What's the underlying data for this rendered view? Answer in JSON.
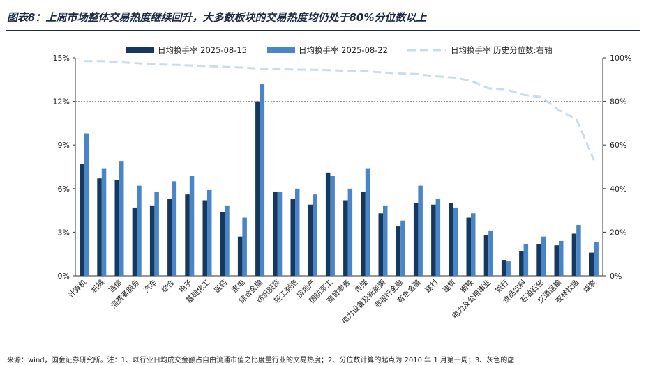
{
  "header": {
    "title": "图表8：上周市场整体交易热度继续回升，大多数板块的交易热度均仍处于80%分位数以上"
  },
  "footer": {
    "source": "来源：wind，国金证券研究所。注：1、以行业日均成交金额占自由流通市值之比度量行业的交易热度；2、分位数计算的起点为 2010 年 1 月第一周；3、灰色的虚"
  },
  "chart_data": {
    "type": "bar",
    "categories": [
      "计算机",
      "机械",
      "通信",
      "消费者服务",
      "汽车",
      "综合",
      "电子",
      "基础化工",
      "医药",
      "家电",
      "综合金融",
      "纺织服装",
      "轻工制造",
      "房地产",
      "国防军工",
      "商贸零售",
      "传媒",
      "电力设备及新能源",
      "非银行金融",
      "有色金属",
      "建材",
      "建筑",
      "钢铁",
      "电力及公用事业",
      "银行",
      "食品饮料",
      "石油石化",
      "交通运输",
      "农林牧渔",
      "煤炭"
    ],
    "series": [
      {
        "name": "日均换手率 2025-08-15",
        "type": "bar",
        "axis": "left",
        "color": "#15385e",
        "values": [
          7.7,
          6.7,
          6.6,
          4.7,
          4.8,
          5.3,
          5.6,
          5.2,
          4.4,
          2.7,
          12.0,
          5.8,
          5.3,
          4.9,
          7.1,
          5.2,
          5.8,
          4.3,
          3.4,
          5.0,
          4.9,
          5.0,
          4.0,
          2.8,
          1.1,
          1.7,
          2.2,
          2.1,
          2.9,
          1.6
        ]
      },
      {
        "name": "日均换手率 2025-08-22",
        "type": "bar",
        "axis": "left",
        "color": "#4a85c8",
        "values": [
          9.8,
          7.4,
          7.9,
          6.2,
          5.8,
          6.5,
          6.9,
          5.9,
          4.8,
          4.0,
          13.2,
          5.8,
          6.0,
          5.6,
          6.9,
          6.0,
          7.4,
          4.8,
          3.8,
          6.2,
          5.3,
          4.7,
          4.3,
          3.1,
          1.0,
          2.2,
          2.7,
          2.4,
          3.5,
          2.3
        ]
      },
      {
        "name": "日均换手率 历史分位数:右轴",
        "type": "line",
        "axis": "right",
        "color": "#c9dcef",
        "values": [
          98.5,
          98.5,
          98.0,
          97.5,
          97.0,
          96.8,
          96.5,
          96.2,
          95.8,
          95.5,
          95.0,
          94.8,
          94.6,
          94.5,
          94.3,
          94.0,
          93.8,
          93.3,
          92.8,
          92.5,
          91.5,
          91.0,
          89.5,
          86.0,
          85.5,
          83.0,
          82.0,
          76.0,
          72.0,
          53.0
        ]
      }
    ],
    "y_left": {
      "ticks": [
        "0%",
        "3%",
        "6%",
        "9%",
        "12%",
        "15%"
      ],
      "range": [
        0,
        15
      ]
    },
    "y_right": {
      "ticks": [
        "0%",
        "20%",
        "40%",
        "60%",
        "80%",
        "100%"
      ],
      "range": [
        0,
        100
      ]
    },
    "reference_line": {
      "axis": "left",
      "value": 12,
      "style": "dotted"
    },
    "legend_position": "top",
    "grid": false
  }
}
